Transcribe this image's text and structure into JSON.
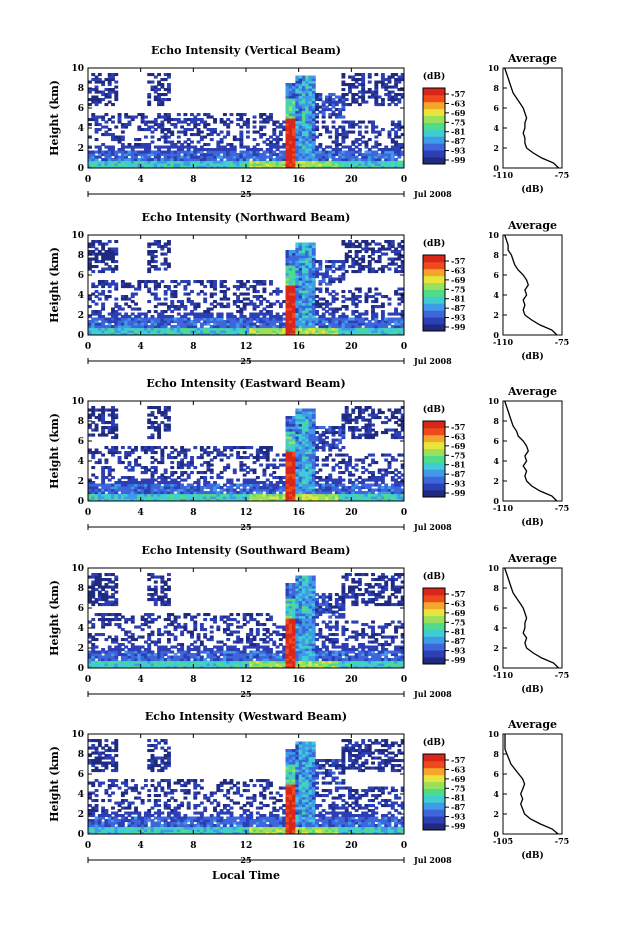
{
  "figure": {
    "xlabel": "Local Time",
    "date_day": "25",
    "date_label": "Jul 2008",
    "ylabel": "Height (km)",
    "colorbar_unit": "(dB)",
    "colorbar_ticks": [
      "-57",
      "-63",
      "-69",
      "-75",
      "-81",
      "-87",
      "-93",
      "-99"
    ],
    "x_ticks": [
      "0",
      "4",
      "8",
      "12",
      "16",
      "20",
      "0"
    ],
    "y_ticks": [
      "0",
      "2",
      "4",
      "6",
      "8",
      "10"
    ],
    "avg_title": "Average",
    "avg_xlabel": "(dB)",
    "colors": [
      "#1f2a80",
      "#2c3fb5",
      "#3e66dc",
      "#3f9be8",
      "#3fcdd2",
      "#4fdc8a",
      "#9be05a",
      "#e8e43a",
      "#f5a52a",
      "#ef4a1d",
      "#d8261a"
    ]
  },
  "chart_data": [
    {
      "type": "heatmap",
      "title": "Echo Intensity (Vertical Beam)",
      "xlabel": "Local Time",
      "ylabel": "Height (km)",
      "xlim": [
        0,
        24
      ],
      "ylim": [
        0,
        10
      ],
      "colorbar": {
        "label": "(dB)",
        "range": [
          -99,
          -57
        ]
      },
      "average_profile": {
        "title": "Average",
        "xlabel": "(dB)",
        "xlim": [
          -110,
          -75
        ],
        "x_ticks": [
          "-110",
          "-75"
        ],
        "ylim": [
          0,
          10
        ],
        "height": [
          0,
          0.5,
          1,
          1.5,
          2,
          2.5,
          3,
          3.5,
          4,
          4.5,
          5,
          5.5,
          6,
          6.5,
          7,
          7.5,
          8,
          8.5,
          9,
          9.5,
          10
        ],
        "db": [
          -77,
          -80,
          -87,
          -92,
          -96,
          -97,
          -97,
          -98,
          -97,
          -97,
          -96,
          -97,
          -98,
          -100,
          -102,
          -104,
          -105,
          -106,
          -107,
          -108,
          -109
        ]
      }
    },
    {
      "type": "heatmap",
      "title": "Echo Intensity (Northward Beam)",
      "xlabel": "Local Time",
      "ylabel": "Height (km)",
      "xlim": [
        0,
        24
      ],
      "ylim": [
        0,
        10
      ],
      "colorbar": {
        "label": "(dB)",
        "range": [
          -99,
          -57
        ]
      },
      "average_profile": {
        "title": "Average",
        "xlabel": "(dB)",
        "xlim": [
          -110,
          -75
        ],
        "x_ticks": [
          "-110",
          "-75"
        ],
        "ylim": [
          0,
          10
        ],
        "height": [
          0,
          0.5,
          1,
          1.5,
          2,
          2.5,
          3,
          3.5,
          4,
          4.5,
          5,
          5.5,
          6,
          6.5,
          7,
          7.5,
          8,
          8.5,
          9,
          9.5,
          10
        ],
        "db": [
          -78,
          -81,
          -88,
          -93,
          -97,
          -98,
          -97,
          -98,
          -96,
          -97,
          -95,
          -96,
          -98,
          -101,
          -103,
          -104,
          -105,
          -107,
          -107,
          -108,
          -109
        ]
      }
    },
    {
      "type": "heatmap",
      "title": "Echo Intensity (Eastward Beam)",
      "xlabel": "Local Time",
      "ylabel": "Height (km)",
      "xlim": [
        0,
        24
      ],
      "ylim": [
        0,
        10
      ],
      "colorbar": {
        "label": "(dB)",
        "range": [
          -99,
          -57
        ]
      },
      "average_profile": {
        "title": "Average",
        "xlabel": "(dB)",
        "xlim": [
          -110,
          -75
        ],
        "x_ticks": [
          "-110",
          "-75"
        ],
        "ylim": [
          0,
          10
        ],
        "height": [
          0,
          0.5,
          1,
          1.5,
          2,
          2.5,
          3,
          3.5,
          4,
          4.5,
          5,
          5.5,
          6,
          6.5,
          7,
          7.5,
          8,
          8.5,
          9,
          9.5,
          10
        ],
        "db": [
          -78,
          -81,
          -88,
          -93,
          -96,
          -97,
          -96,
          -98,
          -96,
          -97,
          -95,
          -96,
          -98,
          -101,
          -102,
          -104,
          -105,
          -106,
          -107,
          -108,
          -109
        ]
      }
    },
    {
      "type": "heatmap",
      "title": "Echo Intensity (Southward Beam)",
      "xlabel": "Local Time",
      "ylabel": "Height (km)",
      "xlim": [
        0,
        24
      ],
      "ylim": [
        0,
        10
      ],
      "colorbar": {
        "label": "(dB)",
        "range": [
          -99,
          -57
        ]
      },
      "average_profile": {
        "title": "Average",
        "xlabel": "(dB)",
        "xlim": [
          -110,
          -75
        ],
        "x_ticks": [
          "-110",
          "-75"
        ],
        "ylim": [
          0,
          10
        ],
        "height": [
          0,
          0.5,
          1,
          1.5,
          2,
          2.5,
          3,
          3.5,
          4,
          4.5,
          5,
          5.5,
          6,
          6.5,
          7,
          7.5,
          8,
          8.5,
          9,
          9.5,
          10
        ],
        "db": [
          -77,
          -80,
          -87,
          -92,
          -96,
          -97,
          -96,
          -98,
          -97,
          -97,
          -96,
          -97,
          -98,
          -100,
          -102,
          -104,
          -105,
          -106,
          -107,
          -108,
          -109
        ]
      }
    },
    {
      "type": "heatmap",
      "title": "Echo Intensity (Westward Beam)",
      "xlabel": "Local Time",
      "ylabel": "Height (km)",
      "xlim": [
        0,
        24
      ],
      "ylim": [
        0,
        10
      ],
      "colorbar": {
        "label": "(dB)",
        "range": [
          -99,
          -57
        ]
      },
      "average_profile": {
        "title": "Average",
        "xlabel": "(dB)",
        "xlim": [
          -105,
          -75
        ],
        "x_ticks": [
          "-105",
          "-75"
        ],
        "ylim": [
          0,
          10
        ],
        "height": [
          0,
          0.5,
          1,
          1.5,
          2,
          2.5,
          3,
          3.5,
          4,
          4.5,
          5,
          5.5,
          6,
          6.5,
          7,
          7.5,
          8,
          8.5,
          9,
          9.5,
          10
        ],
        "db": [
          -77,
          -80,
          -86,
          -91,
          -94,
          -95,
          -96,
          -95,
          -96,
          -95,
          -94,
          -95,
          -97,
          -99,
          -101,
          -102,
          -103,
          -104,
          -104,
          -104,
          -104
        ]
      }
    }
  ]
}
